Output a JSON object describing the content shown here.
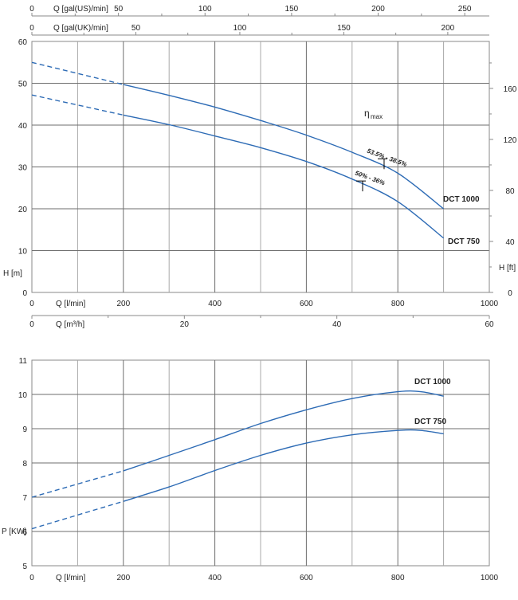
{
  "chart_data": [
    {
      "type": "line",
      "title": "",
      "xlabel": "Q [l/min]",
      "ylabel": "H [m]",
      "y2label": "H [ft]",
      "xlim": [
        0,
        1000
      ],
      "ylim": [
        0,
        60
      ],
      "x_ticks": [
        0,
        200,
        400,
        600,
        800,
        1000
      ],
      "y_ticks": [
        0,
        10,
        20,
        30,
        40,
        50,
        60
      ],
      "y2_ticks": [
        0,
        40,
        80,
        120,
        160
      ],
      "extra_x_axes": [
        {
          "label": "Q [gal(US)/min]",
          "ticks": [
            0,
            50,
            100,
            150,
            200,
            250
          ],
          "factor_lmin_per_unit": 3.785
        },
        {
          "label": "Q [gal(UK)/min]",
          "ticks": [
            0,
            50,
            100,
            150,
            200
          ],
          "factor_lmin_per_unit": 4.546
        },
        {
          "label": "Q [m³/h]",
          "ticks": [
            0,
            20,
            40,
            60
          ],
          "factor_lmin_per_unit": 16.667
        }
      ],
      "grid": true,
      "efficiency_label": "η",
      "efficiency_label_sub": "max",
      "series": [
        {
          "name": "DCT 1000",
          "color": "#2d6bb5",
          "dashed_until_x": 200,
          "points": [
            [
              0,
              55
            ],
            [
              200,
              49.7
            ],
            [
              300,
              47.1
            ],
            [
              400,
              44.3
            ],
            [
              500,
              41.1
            ],
            [
              600,
              37.6
            ],
            [
              700,
              33.5
            ],
            [
              800,
              28.5
            ],
            [
              900,
              20
            ]
          ],
          "bep": {
            "x": 770,
            "y": 30.8,
            "label": "53.5% - 38.5%"
          }
        },
        {
          "name": "DCT 750",
          "color": "#2d6bb5",
          "dashed_until_x": 200,
          "points": [
            [
              0,
              47.2
            ],
            [
              200,
              42.4
            ],
            [
              300,
              40.1
            ],
            [
              400,
              37.4
            ],
            [
              500,
              34.6
            ],
            [
              600,
              31.3
            ],
            [
              700,
              27.1
            ],
            [
              800,
              21.7
            ],
            [
              900,
              13
            ]
          ],
          "bep": {
            "x": 723,
            "y": 25.5,
            "label": "50% - 36%"
          }
        }
      ]
    },
    {
      "type": "line",
      "title": "",
      "xlabel": "Q [l/min]",
      "ylabel": "P [KW]",
      "xlim": [
        0,
        1000
      ],
      "ylim": [
        5,
        11
      ],
      "x_ticks": [
        0,
        200,
        400,
        600,
        800,
        1000
      ],
      "y_ticks": [
        5,
        6,
        7,
        8,
        9,
        10,
        11
      ],
      "grid": true,
      "series": [
        {
          "name": "DCT 1000",
          "color": "#2d6bb5",
          "dashed_until_x": 200,
          "points": [
            [
              0,
              7.0
            ],
            [
              200,
              7.77
            ],
            [
              300,
              8.22
            ],
            [
              400,
              8.68
            ],
            [
              500,
              9.15
            ],
            [
              600,
              9.55
            ],
            [
              700,
              9.88
            ],
            [
              800,
              10.08
            ],
            [
              850,
              10.08
            ],
            [
              900,
              9.95
            ]
          ]
        },
        {
          "name": "DCT 750",
          "color": "#2d6bb5",
          "dashed_until_x": 200,
          "points": [
            [
              0,
              6.08
            ],
            [
              200,
              6.88
            ],
            [
              300,
              7.3
            ],
            [
              400,
              7.78
            ],
            [
              500,
              8.22
            ],
            [
              600,
              8.58
            ],
            [
              700,
              8.82
            ],
            [
              800,
              8.95
            ],
            [
              850,
              8.95
            ],
            [
              900,
              8.85
            ]
          ]
        }
      ]
    }
  ]
}
